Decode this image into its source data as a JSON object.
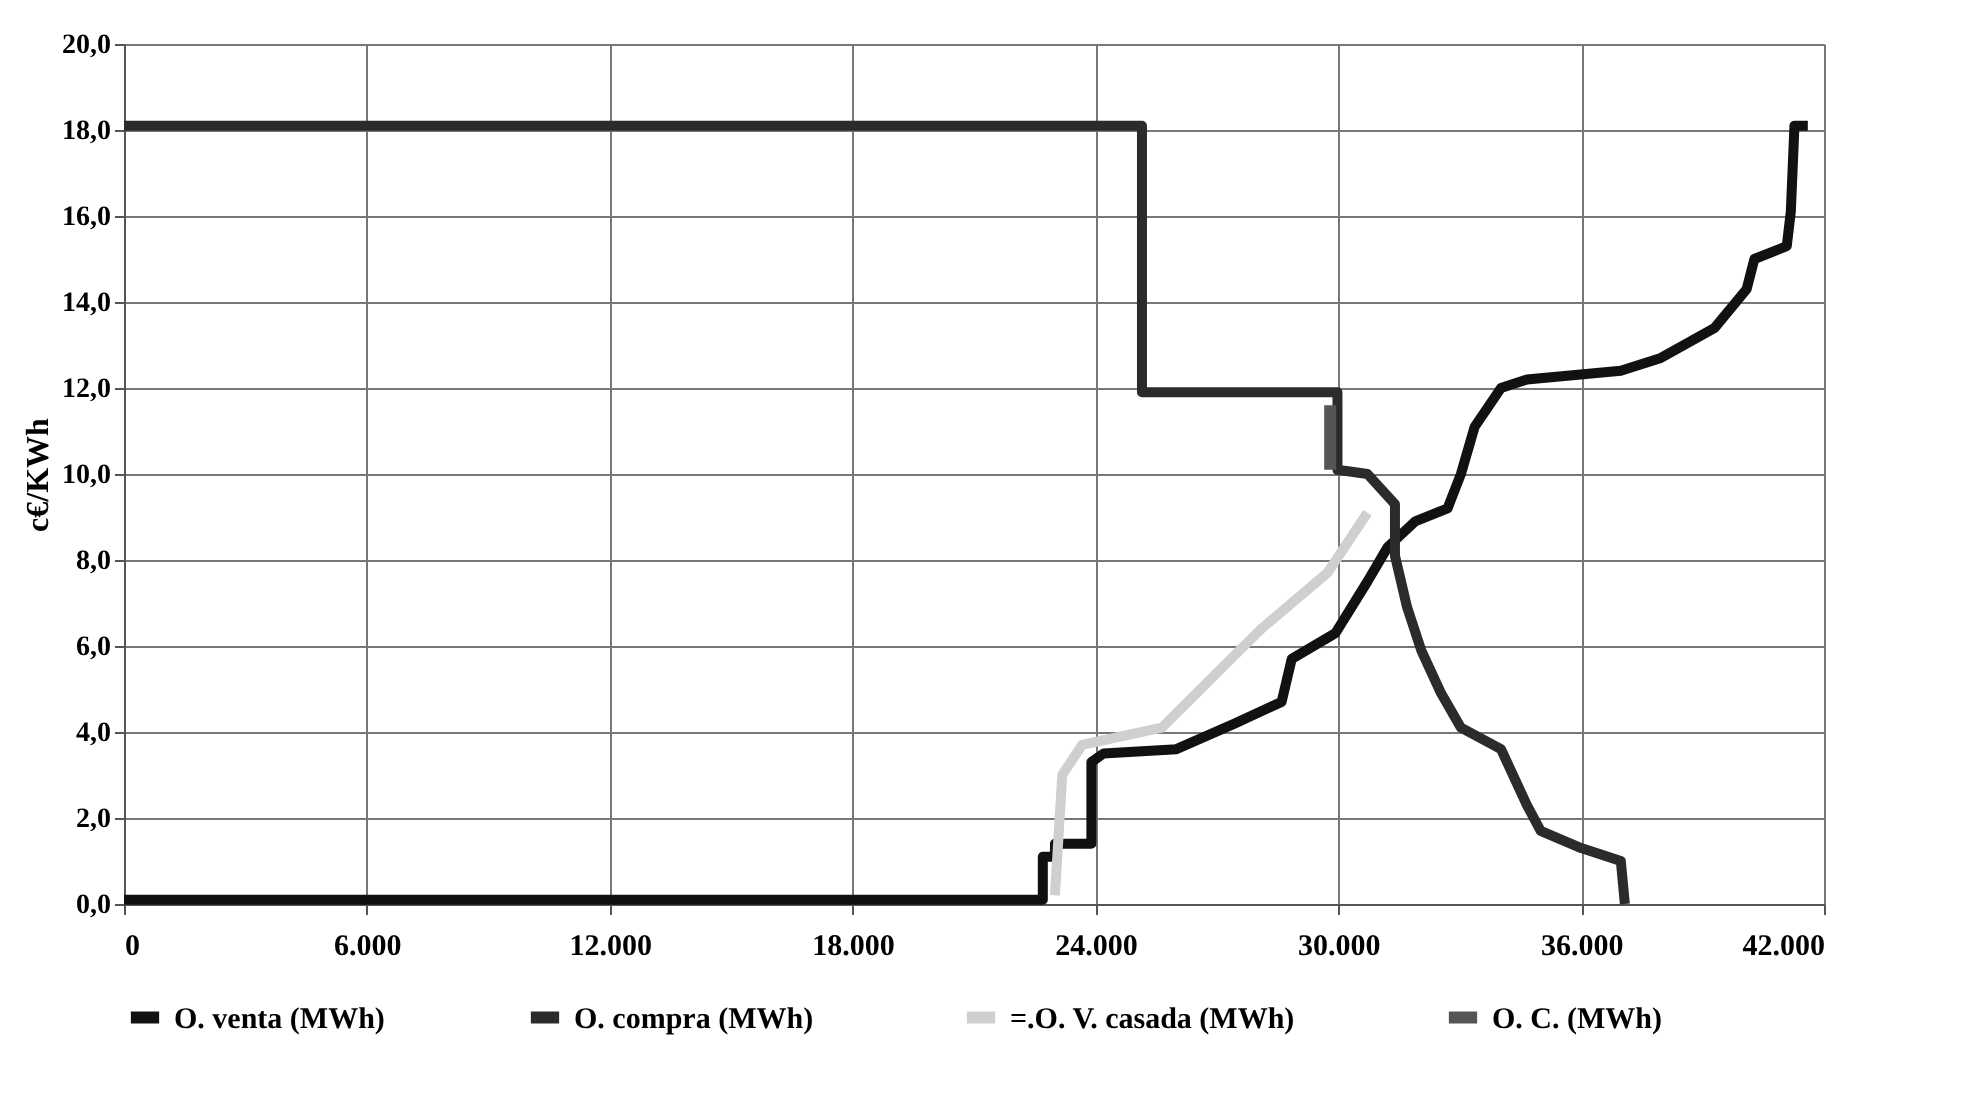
{
  "chart_data": {
    "type": "line",
    "ylabel": "c€/KWh",
    "xlim": [
      0,
      42000
    ],
    "ylim": [
      0,
      20
    ],
    "xticks": [
      0,
      {
        "value": 6000,
        "label": "6.000"
      },
      {
        "value": 12000,
        "label": "12.000"
      },
      {
        "value": 18000,
        "label": "18.000"
      },
      {
        "value": 24000,
        "label": "24.000"
      },
      {
        "value": 30000,
        "label": "30.000"
      },
      {
        "value": 36000,
        "label": "36.000"
      },
      {
        "value": 42000,
        "label": "42.000"
      }
    ],
    "yticks": [
      {
        "value": 0,
        "label": "0,0"
      },
      {
        "value": 2,
        "label": "2,0"
      },
      {
        "value": 4,
        "label": "4,0"
      },
      {
        "value": 6,
        "label": "6,0"
      },
      {
        "value": 8,
        "label": "8,0"
      },
      {
        "value": 10,
        "label": "10,0"
      },
      {
        "value": 12,
        "label": "12,0"
      },
      {
        "value": 14,
        "label": "14,0"
      },
      {
        "value": 16,
        "label": "16,0"
      },
      {
        "value": 18,
        "label": "18,0"
      },
      {
        "value": 20,
        "label": "20,0"
      }
    ],
    "grid": true,
    "legend": "bottom",
    "marker": "none",
    "line_style": "solid",
    "series": [
      {
        "name": "O. venta (MWh)",
        "color": "#111111",
        "x": [
          0,
          22700,
          22700,
          23000,
          23000,
          23900,
          23900,
          24200,
          26000,
          27450,
          28600,
          28850,
          29930,
          30720,
          31220,
          31900,
          32700,
          33030,
          33370,
          34020,
          34660,
          36980,
          37970,
          39300,
          40090,
          40280,
          41080,
          41180,
          41270,
          41600
        ],
        "values": [
          0.1,
          0.1,
          1.1,
          1.1,
          1.4,
          1.4,
          3.3,
          3.5,
          3.6,
          4.2,
          4.7,
          5.7,
          6.3,
          7.5,
          8.3,
          8.9,
          9.2,
          10.0,
          11.1,
          12.0,
          12.2,
          12.4,
          12.7,
          13.4,
          14.3,
          15.0,
          15.3,
          16.1,
          18.1,
          18.1
        ]
      },
      {
        "name": "O. compra  (MWh)",
        "color": "#2b2b2b",
        "x": [
          0,
          25150,
          25150,
          29980,
          29980,
          30720,
          31400,
          31400,
          31700,
          32050,
          32540,
          33030,
          34020,
          34660,
          35000,
          36000,
          36980,
          37080
        ],
        "values": [
          18.1,
          18.1,
          11.9,
          11.9,
          10.1,
          10.0,
          9.3,
          8.1,
          6.9,
          5.9,
          4.9,
          4.1,
          3.6,
          2.3,
          1.7,
          1.3,
          1.0,
          0.0
        ]
      },
      {
        "name": "=.O.  V. casada (MWh)",
        "color": "#cfcfcf",
        "x": [
          23000,
          23180,
          23670,
          25640,
          28100,
          29730,
          30720
        ],
        "values": [
          0.2,
          3.0,
          3.7,
          4.1,
          6.4,
          7.7,
          9.1
        ]
      },
      {
        "name": "O. C. (MWh)",
        "color": "#555555",
        "x": [
          29800,
          29800
        ],
        "values": [
          11.6,
          10.1
        ]
      }
    ]
  }
}
